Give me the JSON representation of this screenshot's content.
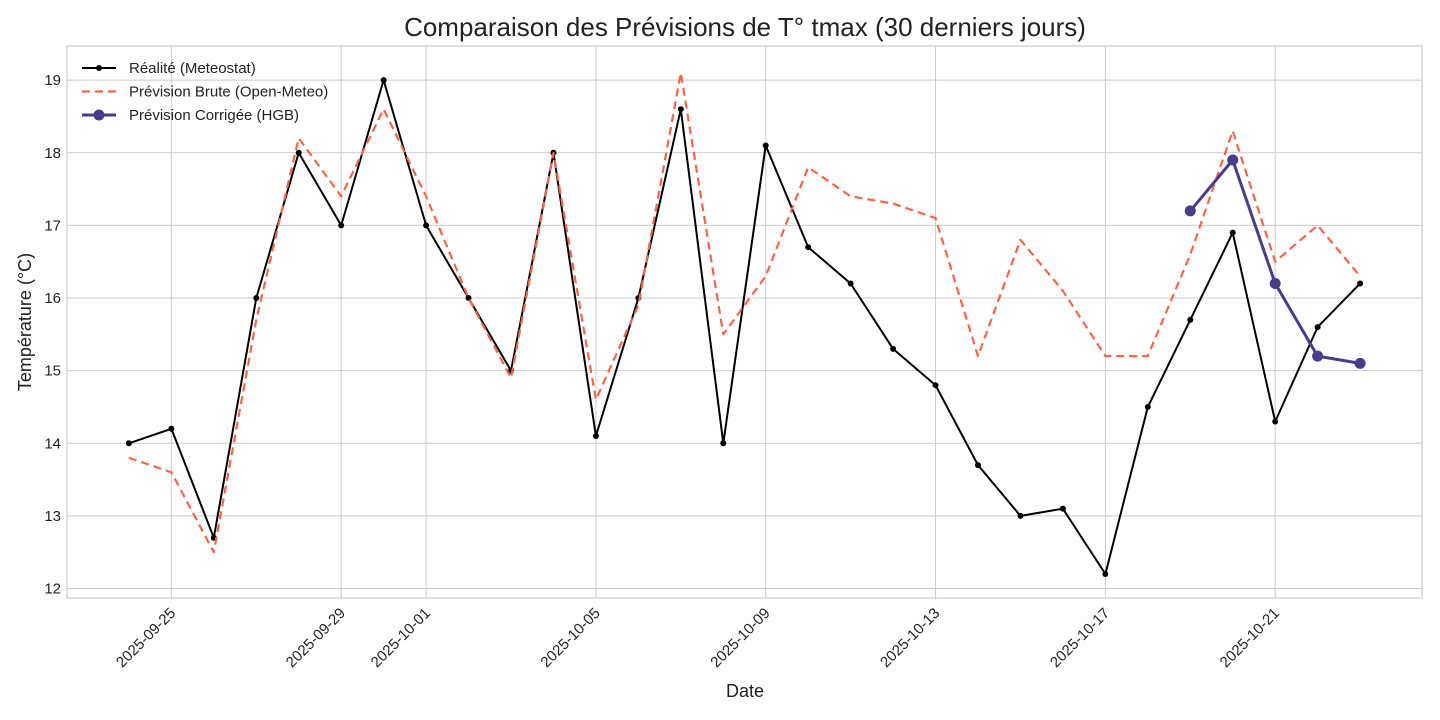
{
  "chart_data": {
    "type": "line",
    "title": "Comparaison des Prévisions de T° tmax (30 derniers jours)",
    "xlabel": "Date",
    "ylabel": "Température (°C)",
    "x_type": "date",
    "xlim": [
      "2025-09-22T13:00",
      "2025-10-24T11:00"
    ],
    "ylim": [
      11.87,
      19.47
    ],
    "grid": true,
    "legend_position": "upper-left",
    "x_ticks": [
      "2025-09-25",
      "2025-09-29",
      "2025-10-01",
      "2025-10-05",
      "2025-10-09",
      "2025-10-13",
      "2025-10-17",
      "2025-10-21"
    ],
    "y_ticks": [
      12,
      13,
      14,
      15,
      16,
      17,
      18,
      19
    ],
    "series": [
      {
        "name": "Réalité (Meteostat)",
        "color": "#000000",
        "style": "solid-small-markers",
        "x": [
          "2025-09-24",
          "2025-09-25",
          "2025-09-26",
          "2025-09-27",
          "2025-09-28",
          "2025-09-29",
          "2025-09-30",
          "2025-10-01",
          "2025-10-02",
          "2025-10-03",
          "2025-10-04",
          "2025-10-05",
          "2025-10-06",
          "2025-10-07",
          "2025-10-08",
          "2025-10-09",
          "2025-10-10",
          "2025-10-11",
          "2025-10-12",
          "2025-10-13",
          "2025-10-14",
          "2025-10-15",
          "2025-10-16",
          "2025-10-17",
          "2025-10-18",
          "2025-10-19",
          "2025-10-20",
          "2025-10-21",
          "2025-10-22",
          "2025-10-23"
        ],
        "values": [
          14.0,
          14.2,
          12.7,
          16.0,
          18.0,
          17.0,
          19.0,
          17.0,
          16.0,
          15.0,
          18.0,
          14.1,
          16.0,
          18.6,
          14.0,
          18.1,
          16.7,
          16.2,
          15.3,
          14.8,
          13.7,
          13.0,
          13.1,
          12.2,
          14.5,
          15.7,
          16.9,
          14.3,
          15.6,
          16.2
        ]
      },
      {
        "name": "Prévision Brute (Open-Meteo)",
        "color": "#f4664a",
        "style": "dashed",
        "x": [
          "2025-09-24",
          "2025-09-25",
          "2025-09-26",
          "2025-09-27",
          "2025-09-28",
          "2025-09-29",
          "2025-09-30",
          "2025-10-01",
          "2025-10-02",
          "2025-10-03",
          "2025-10-04",
          "2025-10-05",
          "2025-10-06",
          "2025-10-07",
          "2025-10-08",
          "2025-10-09",
          "2025-10-10",
          "2025-10-11",
          "2025-10-12",
          "2025-10-13",
          "2025-10-14",
          "2025-10-15",
          "2025-10-16",
          "2025-10-17",
          "2025-10-18",
          "2025-10-19",
          "2025-10-20",
          "2025-10-21",
          "2025-10-22",
          "2025-10-23"
        ],
        "values": [
          13.8,
          13.6,
          12.5,
          15.7,
          18.2,
          17.4,
          18.6,
          17.4,
          16.0,
          14.9,
          18.0,
          14.6,
          15.9,
          19.1,
          15.5,
          16.3,
          17.8,
          17.4,
          17.3,
          17.1,
          15.2,
          16.8,
          16.1,
          15.2,
          15.2,
          16.6,
          18.3,
          16.5,
          17.0,
          16.3
        ]
      },
      {
        "name": "Prévision Corrigée (HGB)",
        "color": "#483d8b",
        "style": "solid-large-markers",
        "x": [
          "2025-10-19",
          "2025-10-20",
          "2025-10-21",
          "2025-10-22",
          "2025-10-23"
        ],
        "values": [
          17.2,
          17.9,
          16.2,
          15.2,
          15.1
        ]
      }
    ]
  }
}
